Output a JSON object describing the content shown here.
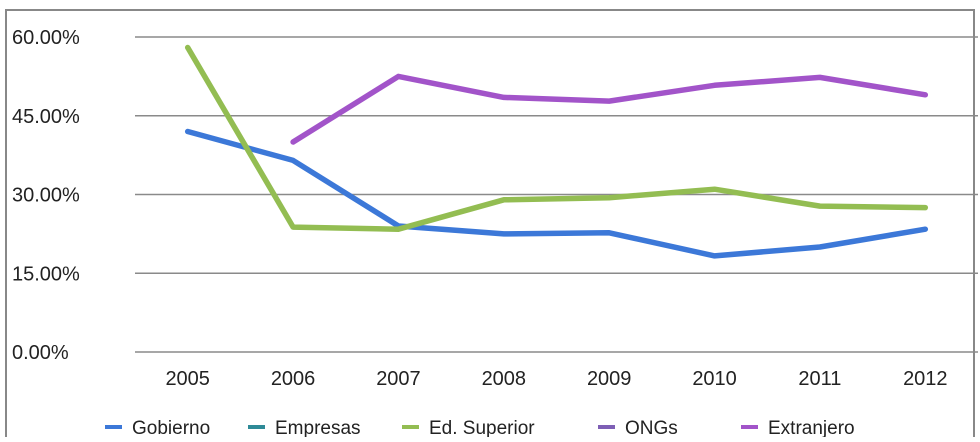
{
  "chart_data": {
    "type": "line",
    "categories": [
      "2005",
      "2006",
      "2007",
      "2008",
      "2009",
      "2010",
      "2011",
      "2012"
    ],
    "y_tick_labels": [
      "0.00%",
      "15.00%",
      "30.00%",
      "45.00%",
      "60.00%"
    ],
    "y_ticks": [
      0,
      15,
      30,
      45,
      60
    ],
    "ylim": [
      0,
      60
    ],
    "grid": true,
    "legend_position": "bottom",
    "series": [
      {
        "name": "Gobierno",
        "color": "#3c78d8",
        "values": [
          42.0,
          36.5,
          24.0,
          22.5,
          22.7,
          18.3,
          20.0,
          23.4
        ]
      },
      {
        "name": "Empresas",
        "color": "#2e8a97",
        "values": [
          null,
          null,
          null,
          null,
          null,
          null,
          null,
          null
        ]
      },
      {
        "name": "Ed. Superior",
        "color": "#93bd52",
        "values": [
          58.0,
          23.8,
          23.4,
          29.0,
          29.4,
          31.0,
          27.8,
          27.5
        ]
      },
      {
        "name": "ONGs",
        "color": "#7e5fb5",
        "values": [
          null,
          null,
          null,
          null,
          null,
          null,
          null,
          null
        ]
      },
      {
        "name": "Extranjero",
        "color": "#a254c9",
        "values": [
          null,
          40.0,
          52.5,
          48.5,
          47.8,
          50.8,
          52.3,
          49.0
        ]
      }
    ]
  }
}
